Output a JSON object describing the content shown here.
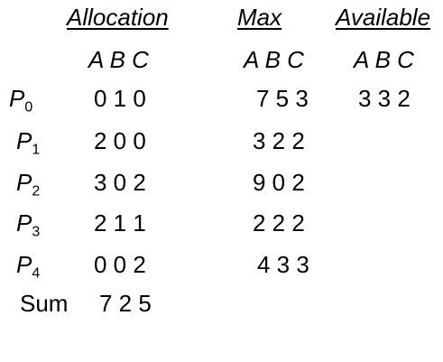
{
  "headers": {
    "allocation": "Allocation",
    "max": "Max",
    "available": "Available"
  },
  "subheaders": {
    "allocation": "A B C",
    "max": "A B C",
    "available": "A B C"
  },
  "processes": [
    {
      "name": "P",
      "index": "0",
      "allocation": "0 1 0",
      "max": "7 5 3",
      "available": "3 3 2"
    },
    {
      "name": "P",
      "index": "1",
      "allocation": "2 0 0",
      "max": "3 2 2",
      "available": ""
    },
    {
      "name": "P",
      "index": "2",
      "allocation": "3 0 2",
      "max": "9 0 2",
      "available": ""
    },
    {
      "name": "P",
      "index": "3",
      "allocation": "2 1 1",
      "max": "2 2 2",
      "available": ""
    },
    {
      "name": "P",
      "index": "4",
      "allocation": "0 0 2",
      "max": "4 3 3",
      "available": ""
    }
  ],
  "sum": {
    "label": "Sum",
    "allocation": "7 2 5"
  }
}
